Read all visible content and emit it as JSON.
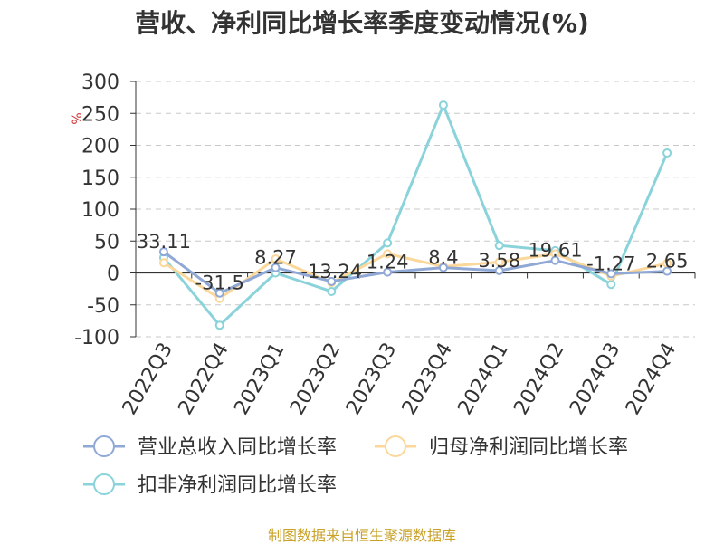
{
  "chart_data": {
    "type": "line",
    "title": "营收、净利同比增长率季度变动情况(%)",
    "ylabel": "%",
    "xlabel": "",
    "categories": [
      "2022Q3",
      "2022Q4",
      "2023Q1",
      "2023Q2",
      "2023Q3",
      "2023Q4",
      "2024Q1",
      "2024Q2",
      "2024Q3",
      "2024Q4"
    ],
    "yticks": [
      300,
      250,
      200,
      150,
      100,
      50,
      0,
      -50,
      -100
    ],
    "ylim": [
      -100,
      300
    ],
    "grid": true,
    "legend_position": "bottom",
    "series": [
      {
        "name": "营业总收入同比增长率",
        "color": "#8fa8d6",
        "values": [
          33.11,
          -31.5,
          8.27,
          -13.24,
          1.24,
          8.4,
          3.58,
          19.61,
          -1.27,
          2.65
        ],
        "labels": [
          "33.11",
          "-31.5",
          "8.27",
          "-13.24",
          "1.24",
          "8.4",
          "3.58",
          "19.61",
          "-1.27",
          "2.65"
        ]
      },
      {
        "name": "归母净利润同比增长率",
        "color": "#fbd79a",
        "values": [
          16,
          -40,
          22,
          -15,
          30,
          10,
          17,
          30,
          -5,
          15
        ]
      },
      {
        "name": "扣非净利润同比增长率",
        "color": "#8ad3da",
        "values": [
          24,
          -82,
          0,
          -29,
          47,
          263,
          43,
          35,
          -18,
          188
        ]
      }
    ]
  },
  "source": "制图数据来自恒生聚源数据库"
}
